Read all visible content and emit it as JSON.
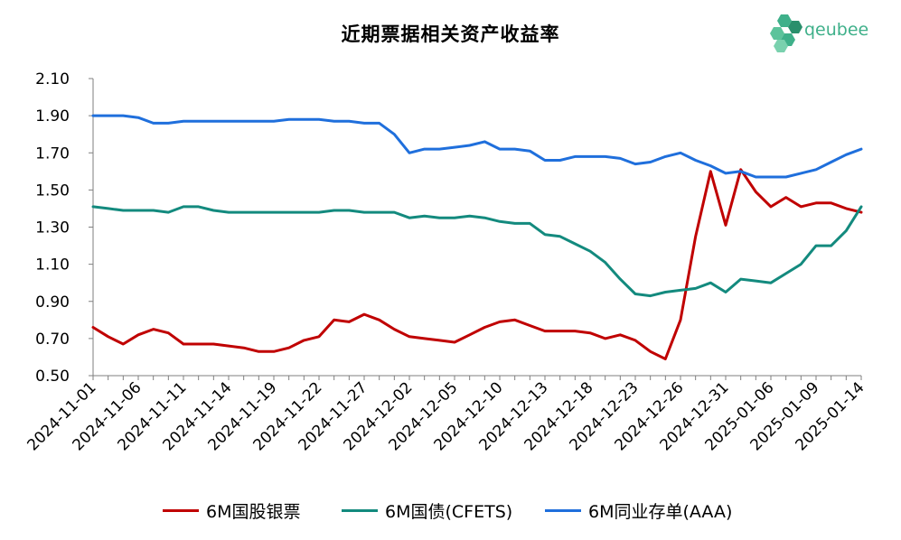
{
  "title": "近期票据相关资产收益率",
  "logo": {
    "text": "qeubee",
    "icon": "hexagon-cluster-icon",
    "color": "#3fb08a"
  },
  "chart_data": {
    "type": "line",
    "title": "近期票据相关资产收益率",
    "xlabel": "",
    "ylabel": "",
    "ylim": [
      0.5,
      2.1
    ],
    "yticks": [
      "2.10",
      "1.90",
      "1.70",
      "1.50",
      "1.30",
      "1.10",
      "0.90",
      "0.70",
      "0.50"
    ],
    "grid": false,
    "legend_position": "bottom",
    "x": [
      "2024-11-01",
      "2024-11-04",
      "2024-11-05",
      "2024-11-06",
      "2024-11-07",
      "2024-11-08",
      "2024-11-11",
      "2024-11-12",
      "2024-11-13",
      "2024-11-14",
      "2024-11-15",
      "2024-11-18",
      "2024-11-19",
      "2024-11-20",
      "2024-11-21",
      "2024-11-22",
      "2024-11-25",
      "2024-11-26",
      "2024-11-27",
      "2024-11-28",
      "2024-11-29",
      "2024-12-02",
      "2024-12-03",
      "2024-12-04",
      "2024-12-05",
      "2024-12-06",
      "2024-12-09",
      "2024-12-10",
      "2024-12-11",
      "2024-12-12",
      "2024-12-13",
      "2024-12-16",
      "2024-12-17",
      "2024-12-18",
      "2024-12-19",
      "2024-12-20",
      "2024-12-23",
      "2024-12-24",
      "2024-12-25",
      "2024-12-26",
      "2024-12-27",
      "2024-12-30",
      "2024-12-31",
      "2025-01-02",
      "2025-01-03",
      "2025-01-06",
      "2025-01-07",
      "2025-01-08",
      "2025-01-09",
      "2025-01-10",
      "2025-01-13",
      "2025-01-14"
    ],
    "x_tick_labels": [
      "2024-11-01",
      "2024-11-06",
      "2024-11-11",
      "2024-11-14",
      "2024-11-19",
      "2024-11-22",
      "2024-11-27",
      "2024-12-02",
      "2024-12-05",
      "2024-12-10",
      "2024-12-13",
      "2024-12-18",
      "2024-12-23",
      "2024-12-26",
      "2024-12-31",
      "2025-01-06",
      "2025-01-09",
      "2025-01-14"
    ],
    "series": [
      {
        "name": "6M国股银票",
        "color": "#c00000",
        "values": [
          0.76,
          0.71,
          0.67,
          0.72,
          0.75,
          0.73,
          0.67,
          0.67,
          0.67,
          0.66,
          0.65,
          0.63,
          0.63,
          0.65,
          0.69,
          0.71,
          0.8,
          0.79,
          0.83,
          0.8,
          0.75,
          0.71,
          0.7,
          0.69,
          0.68,
          0.72,
          0.76,
          0.79,
          0.8,
          0.77,
          0.74,
          0.74,
          0.74,
          0.73,
          0.7,
          0.72,
          0.69,
          0.63,
          0.59,
          0.8,
          1.25,
          1.6,
          1.31,
          1.61,
          1.49,
          1.41,
          1.46,
          1.41,
          1.43,
          1.43,
          1.4,
          1.38
        ]
      },
      {
        "name": "6M国债(CFETS)",
        "color": "#138a7e",
        "values": [
          1.41,
          1.4,
          1.39,
          1.39,
          1.39,
          1.38,
          1.41,
          1.41,
          1.39,
          1.38,
          1.38,
          1.38,
          1.38,
          1.38,
          1.38,
          1.38,
          1.39,
          1.39,
          1.38,
          1.38,
          1.38,
          1.35,
          1.36,
          1.35,
          1.35,
          1.36,
          1.35,
          1.33,
          1.32,
          1.32,
          1.26,
          1.25,
          1.21,
          1.17,
          1.11,
          1.02,
          0.94,
          0.93,
          0.95,
          0.96,
          0.97,
          1.0,
          0.95,
          1.02,
          1.01,
          1.0,
          1.05,
          1.1,
          1.2,
          1.2,
          1.28,
          1.41
        ]
      },
      {
        "name": "6M同业存单(AAA)",
        "color": "#1f6fdc",
        "values": [
          1.9,
          1.9,
          1.9,
          1.89,
          1.86,
          1.86,
          1.87,
          1.87,
          1.87,
          1.87,
          1.87,
          1.87,
          1.87,
          1.88,
          1.88,
          1.88,
          1.87,
          1.87,
          1.86,
          1.86,
          1.8,
          1.7,
          1.72,
          1.72,
          1.73,
          1.74,
          1.76,
          1.72,
          1.72,
          1.71,
          1.66,
          1.66,
          1.68,
          1.68,
          1.68,
          1.67,
          1.64,
          1.65,
          1.68,
          1.7,
          1.66,
          1.63,
          1.59,
          1.6,
          1.57,
          1.57,
          1.57,
          1.59,
          1.61,
          1.65,
          1.69,
          1.72
        ]
      }
    ]
  }
}
